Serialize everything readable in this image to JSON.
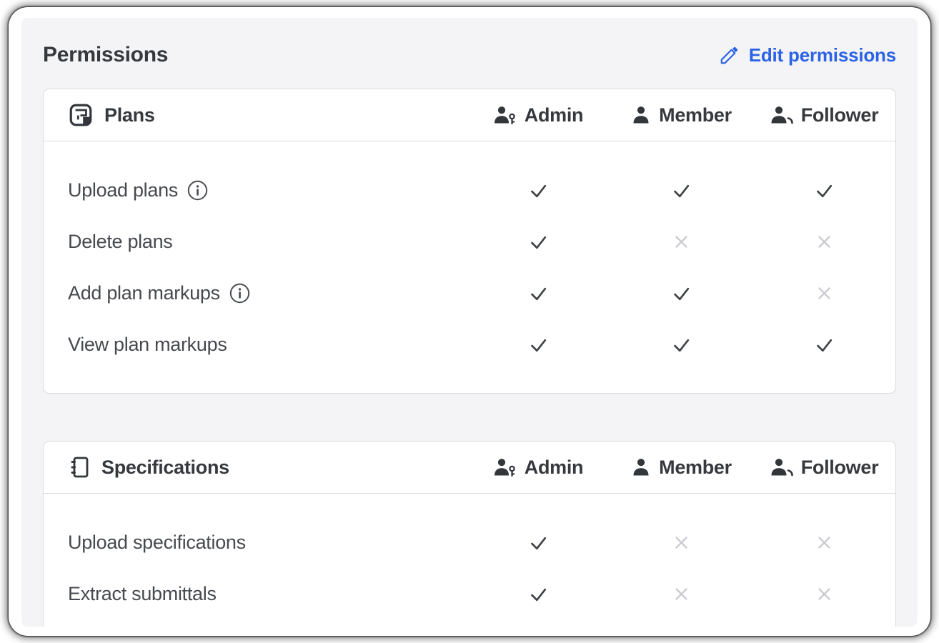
{
  "page": {
    "title": "Permissions"
  },
  "toolbar": {
    "edit_label": "Edit permissions"
  },
  "colors": {
    "accent_blue": "#2b63e6",
    "check_dark": "#3f4347",
    "x_light": "#c9cbd0",
    "icon_dark": "#33373b",
    "panel_bg": "#f4f4f6",
    "border": "#d8dade"
  },
  "columns": [
    {
      "key": "admin",
      "label": "Admin",
      "icon": "admin-user-key-icon"
    },
    {
      "key": "member",
      "label": "Member",
      "icon": "member-user-icon"
    },
    {
      "key": "follower",
      "label": "Follower",
      "icon": "follower-user-icon"
    }
  ],
  "sections": [
    {
      "title": "Plans",
      "icon": "plans-icon",
      "rows": [
        {
          "label": "Upload plans",
          "info": true,
          "admin": true,
          "member": true,
          "follower": true
        },
        {
          "label": "Delete plans",
          "info": false,
          "admin": true,
          "member": false,
          "follower": false
        },
        {
          "label": "Add plan markups",
          "info": true,
          "admin": true,
          "member": true,
          "follower": false
        },
        {
          "label": "View plan markups",
          "info": false,
          "admin": true,
          "member": true,
          "follower": true
        }
      ]
    },
    {
      "title": "Specifications",
      "icon": "specifications-icon",
      "rows": [
        {
          "label": "Upload specifications",
          "info": false,
          "admin": true,
          "member": false,
          "follower": false
        },
        {
          "label": "Extract submittals",
          "info": false,
          "admin": true,
          "member": false,
          "follower": false
        }
      ]
    }
  ]
}
